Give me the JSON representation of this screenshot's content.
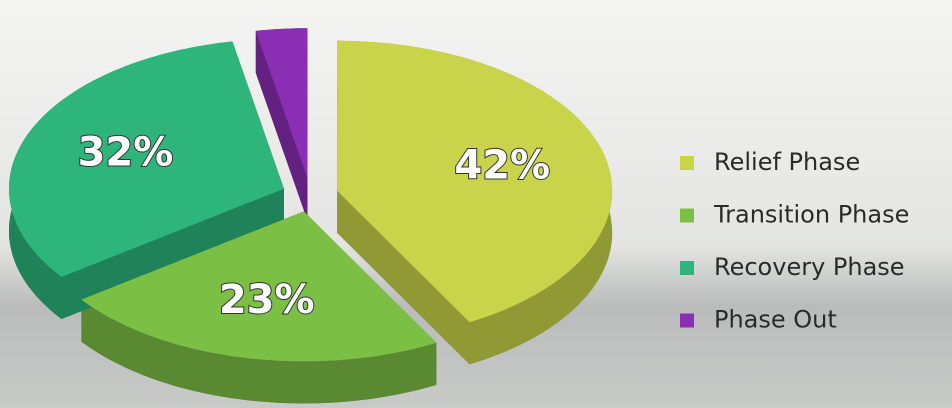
{
  "chart_data": {
    "type": "pie3d",
    "categories": [
      "Relief Phase",
      "Transition Phase",
      "Recovery Phase",
      "Phase Out"
    ],
    "values": [
      42,
      23,
      32,
      3
    ],
    "value_labels": [
      "42%",
      "23%",
      "32%",
      "3%"
    ],
    "colors": [
      "#c9d44a",
      "#7cbf45",
      "#2db57c",
      "#8a2fb3"
    ],
    "legend": "right"
  }
}
